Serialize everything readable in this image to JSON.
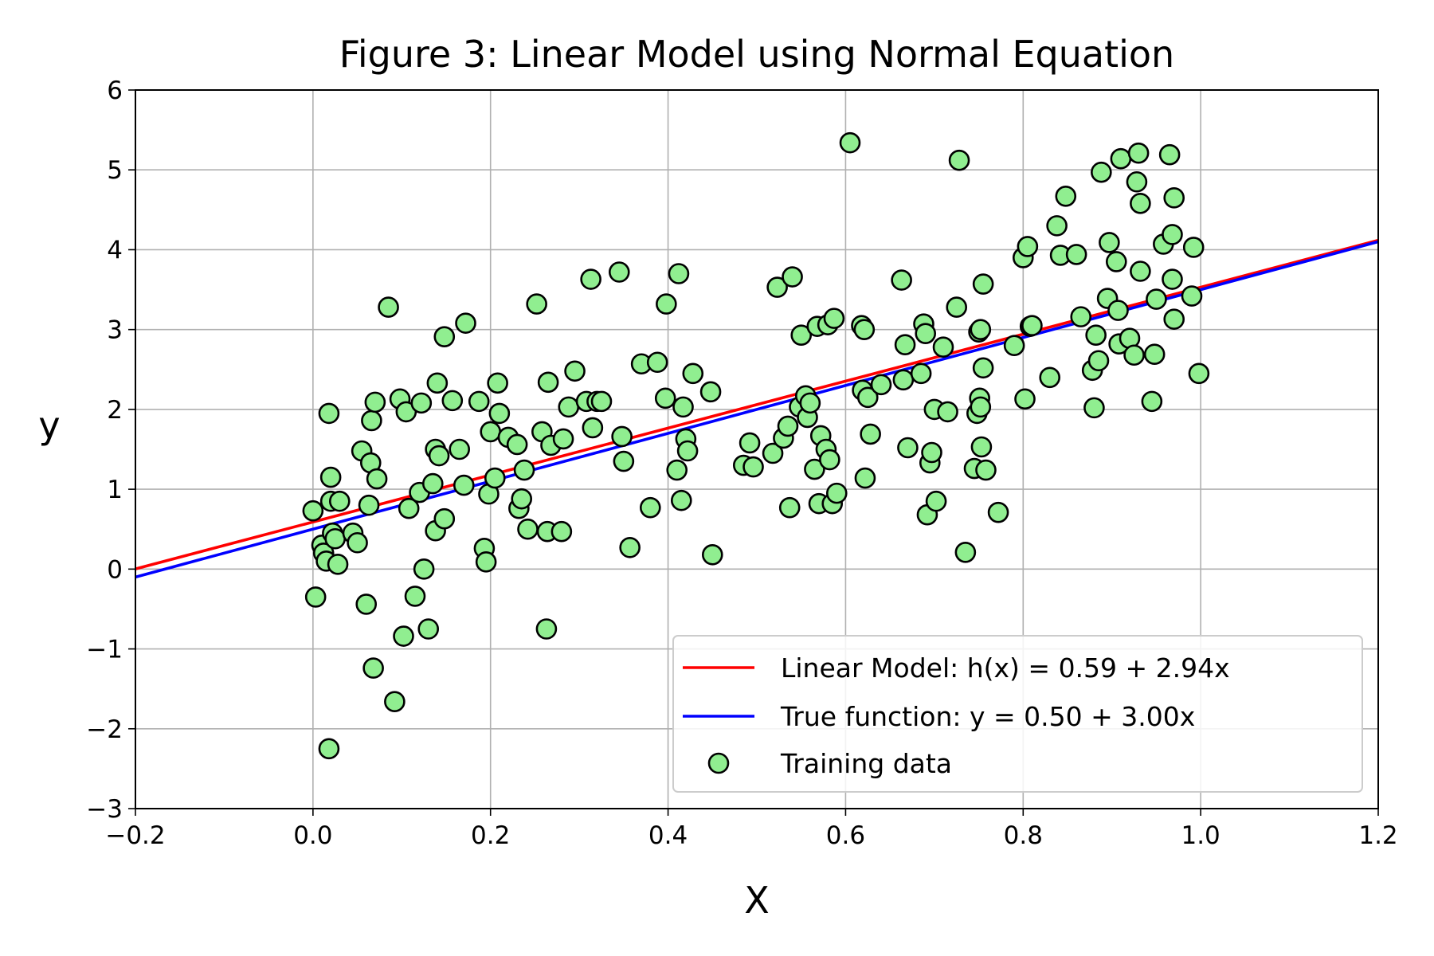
{
  "chart_data": {
    "type": "scatter",
    "title": "Figure 3: Linear Model using Normal Equation",
    "xlabel": "X",
    "ylabel": "y",
    "xlim": [
      -0.2,
      1.2
    ],
    "ylim": [
      -3,
      6
    ],
    "xticks": [
      -0.2,
      0.0,
      0.2,
      0.4,
      0.6,
      0.8,
      1.0,
      1.2
    ],
    "yticks": [
      -3,
      -2,
      -1,
      0,
      1,
      2,
      3,
      4,
      5,
      6
    ],
    "xtick_labels": [
      "−0.2",
      "0.0",
      "0.2",
      "0.4",
      "0.6",
      "0.8",
      "1.0",
      "1.2"
    ],
    "ytick_labels": [
      "−3",
      "−2",
      "−1",
      "0",
      "1",
      "2",
      "3",
      "4",
      "5",
      "6"
    ],
    "grid": true,
    "legend_position": "lower-right",
    "lines": [
      {
        "name": "Linear Model: h(x) = 0.59 + 2.94x",
        "intercept": 0.59,
        "slope": 2.94,
        "color": "#ff0000"
      },
      {
        "name": "True function: y = 0.50 + 3.00x",
        "intercept": 0.5,
        "slope": 3.0,
        "color": "#0000ff"
      }
    ],
    "scatter": {
      "name": "Training data",
      "color": "#90ee90",
      "edge_color": "#000000",
      "points": [
        [
          0.0,
          0.73
        ],
        [
          0.003,
          -0.35
        ],
        [
          0.01,
          0.3
        ],
        [
          0.012,
          0.2
        ],
        [
          0.015,
          0.1
        ],
        [
          0.018,
          1.95
        ],
        [
          0.02,
          0.85
        ],
        [
          0.02,
          1.15
        ],
        [
          0.022,
          0.45
        ],
        [
          0.025,
          0.38
        ],
        [
          0.028,
          0.06
        ],
        [
          0.03,
          0.85
        ],
        [
          0.018,
          -2.25
        ],
        [
          0.045,
          0.45
        ],
        [
          0.05,
          0.33
        ],
        [
          0.055,
          1.48
        ],
        [
          0.06,
          -0.44
        ],
        [
          0.063,
          0.8
        ],
        [
          0.065,
          1.33
        ],
        [
          0.066,
          1.86
        ],
        [
          0.068,
          -1.24
        ],
        [
          0.07,
          2.09
        ],
        [
          0.072,
          1.13
        ],
        [
          0.085,
          3.28
        ],
        [
          0.092,
          -1.66
        ],
        [
          0.098,
          2.13
        ],
        [
          0.102,
          -0.84
        ],
        [
          0.105,
          1.97
        ],
        [
          0.108,
          0.76
        ],
        [
          0.115,
          -0.34
        ],
        [
          0.12,
          0.96
        ],
        [
          0.122,
          2.08
        ],
        [
          0.125,
          0.0
        ],
        [
          0.13,
          -0.75
        ],
        [
          0.135,
          1.07
        ],
        [
          0.138,
          0.48
        ],
        [
          0.138,
          1.5
        ],
        [
          0.14,
          2.33
        ],
        [
          0.142,
          1.42
        ],
        [
          0.148,
          0.63
        ],
        [
          0.148,
          2.91
        ],
        [
          0.157,
          2.11
        ],
        [
          0.165,
          1.5
        ],
        [
          0.17,
          1.05
        ],
        [
          0.172,
          3.08
        ],
        [
          0.187,
          2.1
        ],
        [
          0.193,
          0.26
        ],
        [
          0.195,
          0.09
        ],
        [
          0.198,
          0.94
        ],
        [
          0.2,
          1.72
        ],
        [
          0.205,
          1.14
        ],
        [
          0.208,
          2.33
        ],
        [
          0.21,
          1.95
        ],
        [
          0.22,
          1.65
        ],
        [
          0.23,
          1.56
        ],
        [
          0.232,
          0.76
        ],
        [
          0.235,
          0.88
        ],
        [
          0.238,
          1.24
        ],
        [
          0.242,
          0.5
        ],
        [
          0.252,
          3.32
        ],
        [
          0.258,
          1.72
        ],
        [
          0.263,
          -0.75
        ],
        [
          0.264,
          0.47
        ],
        [
          0.265,
          2.34
        ],
        [
          0.268,
          1.55
        ],
        [
          0.28,
          0.47
        ],
        [
          0.282,
          1.63
        ],
        [
          0.288,
          2.03
        ],
        [
          0.295,
          2.48
        ],
        [
          0.308,
          2.1
        ],
        [
          0.313,
          3.63
        ],
        [
          0.315,
          1.77
        ],
        [
          0.32,
          2.1
        ],
        [
          0.325,
          2.1
        ],
        [
          0.345,
          3.72
        ],
        [
          0.348,
          1.66
        ],
        [
          0.35,
          1.35
        ],
        [
          0.357,
          0.27
        ],
        [
          0.37,
          2.57
        ],
        [
          0.38,
          0.77
        ],
        [
          0.388,
          2.59
        ],
        [
          0.397,
          2.14
        ],
        [
          0.398,
          3.32
        ],
        [
          0.41,
          1.24
        ],
        [
          0.412,
          3.7
        ],
        [
          0.415,
          0.86
        ],
        [
          0.417,
          2.03
        ],
        [
          0.42,
          1.63
        ],
        [
          0.422,
          1.48
        ],
        [
          0.428,
          2.45
        ],
        [
          0.448,
          2.22
        ],
        [
          0.45,
          0.18
        ],
        [
          0.485,
          1.3
        ],
        [
          0.492,
          1.58
        ],
        [
          0.496,
          1.28
        ],
        [
          0.518,
          1.45
        ],
        [
          0.523,
          3.53
        ],
        [
          0.53,
          1.64
        ],
        [
          0.535,
          1.79
        ],
        [
          0.537,
          0.77
        ],
        [
          0.54,
          3.66
        ],
        [
          0.548,
          2.03
        ],
        [
          0.55,
          2.93
        ],
        [
          0.555,
          2.17
        ],
        [
          0.557,
          1.9
        ],
        [
          0.56,
          2.08
        ],
        [
          0.565,
          1.25
        ],
        [
          0.568,
          3.04
        ],
        [
          0.57,
          0.82
        ],
        [
          0.572,
          1.67
        ],
        [
          0.578,
          1.5
        ],
        [
          0.58,
          3.06
        ],
        [
          0.582,
          1.37
        ],
        [
          0.585,
          0.82
        ],
        [
          0.587,
          3.14
        ],
        [
          0.59,
          0.95
        ],
        [
          0.605,
          5.34
        ],
        [
          0.618,
          3.05
        ],
        [
          0.619,
          2.24
        ],
        [
          0.621,
          3.0
        ],
        [
          0.622,
          1.14
        ],
        [
          0.625,
          2.15
        ],
        [
          0.628,
          1.69
        ],
        [
          0.64,
          2.31
        ],
        [
          0.663,
          3.62
        ],
        [
          0.665,
          2.37
        ],
        [
          0.667,
          2.81
        ],
        [
          0.67,
          1.52
        ],
        [
          0.685,
          2.45
        ],
        [
          0.688,
          3.07
        ],
        [
          0.69,
          2.95
        ],
        [
          0.692,
          0.68
        ],
        [
          0.695,
          1.33
        ],
        [
          0.697,
          1.46
        ],
        [
          0.7,
          2.0
        ],
        [
          0.702,
          0.85
        ],
        [
          0.71,
          2.78
        ],
        [
          0.715,
          1.97
        ],
        [
          0.725,
          3.28
        ],
        [
          0.728,
          5.12
        ],
        [
          0.735,
          0.21
        ],
        [
          0.745,
          1.26
        ],
        [
          0.748,
          1.95
        ],
        [
          0.75,
          2.97
        ],
        [
          0.751,
          2.14
        ],
        [
          0.752,
          2.03
        ],
        [
          0.752,
          3.0
        ],
        [
          0.753,
          1.53
        ],
        [
          0.755,
          2.52
        ],
        [
          0.755,
          3.57
        ],
        [
          0.758,
          1.24
        ],
        [
          0.772,
          0.71
        ],
        [
          0.79,
          2.8
        ],
        [
          0.8,
          3.9
        ],
        [
          0.802,
          2.13
        ],
        [
          0.805,
          4.04
        ],
        [
          0.808,
          3.04
        ],
        [
          0.81,
          3.05
        ],
        [
          0.83,
          2.4
        ],
        [
          0.838,
          4.3
        ],
        [
          0.842,
          3.93
        ],
        [
          0.848,
          4.67
        ],
        [
          0.86,
          3.94
        ],
        [
          0.865,
          3.16
        ],
        [
          0.878,
          2.49
        ],
        [
          0.88,
          2.02
        ],
        [
          0.882,
          2.93
        ],
        [
          0.885,
          2.61
        ],
        [
          0.888,
          4.97
        ],
        [
          0.895,
          3.39
        ],
        [
          0.897,
          4.09
        ],
        [
          0.905,
          3.85
        ],
        [
          0.907,
          3.24
        ],
        [
          0.908,
          2.82
        ],
        [
          0.91,
          5.14
        ],
        [
          0.92,
          2.89
        ],
        [
          0.925,
          2.68
        ],
        [
          0.928,
          4.85
        ],
        [
          0.93,
          5.21
        ],
        [
          0.932,
          4.58
        ],
        [
          0.932,
          3.73
        ],
        [
          0.945,
          2.1
        ],
        [
          0.948,
          2.69
        ],
        [
          0.95,
          3.38
        ],
        [
          0.958,
          4.07
        ],
        [
          0.965,
          5.19
        ],
        [
          0.968,
          3.63
        ],
        [
          0.968,
          4.19
        ],
        [
          0.97,
          3.13
        ],
        [
          0.97,
          4.65
        ],
        [
          0.99,
          3.42
        ],
        [
          0.992,
          4.03
        ],
        [
          0.998,
          2.45
        ]
      ]
    }
  }
}
